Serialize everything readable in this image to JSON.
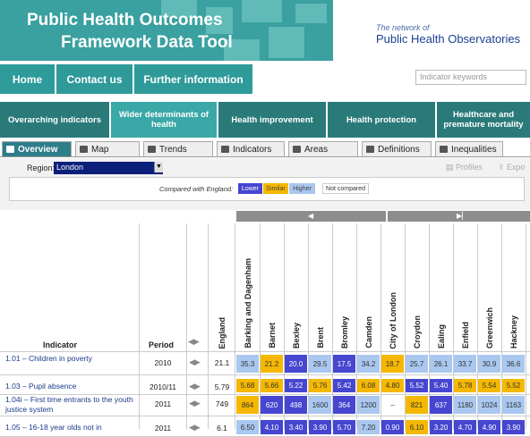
{
  "header": {
    "title_line1": "Public Health Outcomes",
    "title_line2": "Framework Data Tool",
    "network_small": "The network of",
    "network_big": "Public Health Observatories"
  },
  "nav": {
    "items": [
      "Home",
      "Contact us",
      "Further information"
    ],
    "search_placeholder": "Indicator keywords"
  },
  "domains": [
    {
      "label": "Overarching indicators",
      "active": false
    },
    {
      "label": "Wider determinants of health",
      "active": true
    },
    {
      "label": "Health improvement",
      "active": false
    },
    {
      "label": "Health protection",
      "active": false
    },
    {
      "label": "Healthcare and premature mortality",
      "active": false
    }
  ],
  "subtabs": [
    {
      "label": "Overview",
      "active": true,
      "icon": "overview-icon"
    },
    {
      "label": "Map",
      "active": false,
      "icon": "map-icon"
    },
    {
      "label": "Trends",
      "active": false,
      "icon": "trends-icon"
    },
    {
      "label": "Indicators",
      "active": false,
      "icon": "indicators-icon"
    },
    {
      "label": "Areas",
      "active": false,
      "icon": "areas-icon"
    },
    {
      "label": "Definitions",
      "active": false,
      "icon": "definitions-icon"
    },
    {
      "label": "Inequalities",
      "active": false,
      "icon": "inequalities-icon"
    }
  ],
  "controls": {
    "region_label": "Region:",
    "region_value": "London",
    "profiles_label": "Profiles",
    "export_label": "Expo",
    "compared_label": "Compared with England:",
    "legend": {
      "lower": "Lower",
      "similar": "Similar",
      "higher": "Higher",
      "not_compared": "Not compared"
    }
  },
  "colors": {
    "lower": "#4646d0",
    "similar": "#f5b800",
    "higher": "#a9c7ef",
    "teal": "#2e9a9a"
  },
  "table": {
    "indicator_header": "Indicator",
    "period_header": "Period",
    "england_header": "England",
    "areas": [
      "Barking and Dagenham",
      "Barnet",
      "Bexley",
      "Brent",
      "Bromley",
      "Camden",
      "City of London",
      "Croydon",
      "Ealing",
      "Enfield",
      "Greenwich",
      "Hackney"
    ],
    "rows": [
      {
        "indicator": "1.01 – Children in poverty",
        "period": "2010",
        "england": "21.1",
        "values": [
          "35.3",
          "21.2",
          "20.0",
          "29.5",
          "17.5",
          "34.2",
          "18.7",
          "25.7",
          "26.1",
          "33.7",
          "30.9",
          "36.6"
        ],
        "status": [
          "H",
          "S",
          "L",
          "H",
          "L",
          "H",
          "S",
          "H",
          "H",
          "H",
          "H",
          "H"
        ]
      },
      {
        "indicator": "1.03 – Pupil absence",
        "period": "2010/11",
        "england": "5.79",
        "values": [
          "5.68",
          "5.66",
          "5.22",
          "5.76",
          "5.42",
          "6.08",
          "4.80",
          "5.52",
          "5.40",
          "5.78",
          "5.54",
          "5.52"
        ],
        "status": [
          "S",
          "S",
          "L",
          "S",
          "L",
          "S",
          "S",
          "L",
          "L",
          "S",
          "S",
          "S"
        ]
      },
      {
        "indicator": "1.04i – First time entrants to the youth justice system",
        "period": "2011",
        "england": "749",
        "values": [
          "864",
          "620",
          "498",
          "1600",
          "364",
          "1200",
          "–",
          "821",
          "637",
          "1180",
          "1024",
          "1163"
        ],
        "status": [
          "S",
          "L",
          "L",
          "H",
          "L",
          "H",
          "N",
          "S",
          "L",
          "H",
          "H",
          "H"
        ]
      },
      {
        "indicator": "1.05 – 16-18 year olds not in",
        "period": "2011",
        "england": "6.1",
        "values": [
          "6.50",
          "4.10",
          "3.40",
          "3.90",
          "5.70",
          "7.20",
          "0.90",
          "6.10",
          "3.20",
          "4.70",
          "4.90",
          "3.90"
        ],
        "status": [
          "H",
          "L",
          "L",
          "L",
          "L",
          "H",
          "L",
          "S",
          "L",
          "L",
          "L",
          "L"
        ]
      }
    ]
  }
}
